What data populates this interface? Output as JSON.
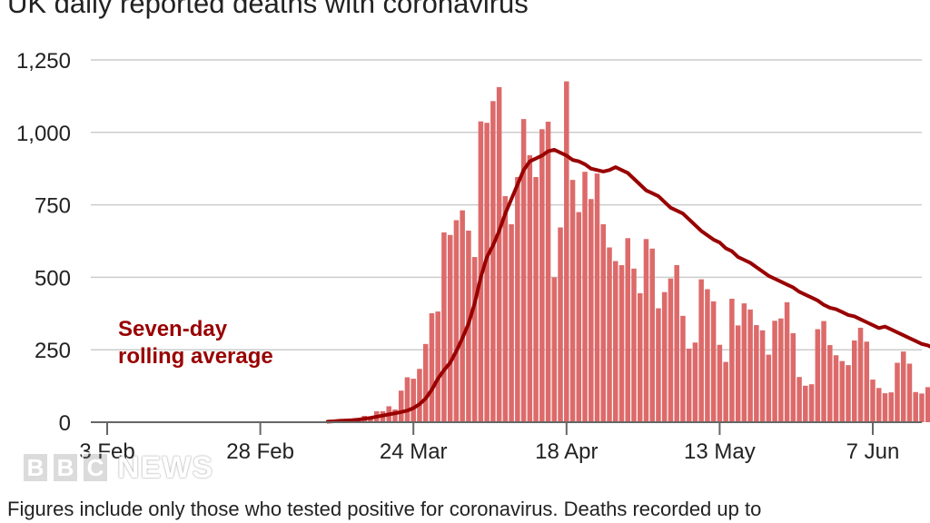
{
  "title": "UK daily reported deaths with coronavirus",
  "footnote": "Figures include only those who tested positive for coronavirus. Deaths recorded up to",
  "logo": {
    "letters": [
      "B",
      "B",
      "C"
    ],
    "word": "NEWS"
  },
  "colors": {
    "bar": "#dd6a6a",
    "line": "#990000",
    "grid": "#cccccc",
    "axis": "#666666",
    "text": "#222222"
  },
  "chart_data": {
    "type": "bar",
    "title": "UK daily reported deaths with coronavirus",
    "xlabel": "",
    "ylabel": "",
    "x_axis": {
      "start_date": "2020-02-03",
      "end_date": "2020-06-07",
      "ticks": [
        {
          "date": "2020-02-03",
          "label": "3 Feb"
        },
        {
          "date": "2020-02-28",
          "label": "28 Feb"
        },
        {
          "date": "2020-03-24",
          "label": "24 Mar"
        },
        {
          "date": "2020-04-18",
          "label": "18 Apr"
        },
        {
          "date": "2020-05-13",
          "label": "13 May"
        },
        {
          "date": "2020-06-07",
          "label": "7 Jun"
        }
      ]
    },
    "y_axis": {
      "ylim": [
        0,
        1250
      ],
      "ticks": [
        {
          "value": 0,
          "label": "0"
        },
        {
          "value": 250,
          "label": "250"
        },
        {
          "value": 500,
          "label": "500"
        },
        {
          "value": 750,
          "label": "750"
        },
        {
          "value": 1000,
          "label": "1,000"
        },
        {
          "value": 1250,
          "label": "1,250"
        }
      ]
    },
    "grid": true,
    "series": [
      {
        "type": "bar",
        "start_date": "2020-03-10",
        "values": [
          2,
          1,
          2,
          8,
          1,
          11,
          22,
          15,
          38,
          38,
          55,
          44,
          109,
          155,
          150,
          184,
          270,
          376,
          382,
          655,
          646,
          697,
          731,
          661,
          570,
          1038,
          1033,
          1108,
          1156,
          780,
          683,
          846,
          1046,
          921,
          846,
          1011,
          1037,
          500,
          672,
          1176,
          836,
          725,
          864,
          770,
          858,
          683,
          603,
          556,
          542,
          635,
          530,
          445,
          632,
          599,
          393,
          449,
          496,
          542,
          367,
          254,
          275,
          493,
          459,
          417,
          267,
          208,
          426,
          334,
          410,
          389,
          335,
          317,
          233,
          350,
          358,
          414,
          307,
          156,
          126,
          131,
          321,
          349,
          266,
          231,
          211,
          197,
          282,
          326,
          278,
          147,
          118,
          100,
          103,
          205,
          244,
          202,
          104,
          99,
          121,
          97,
          77
        ],
        "description": "Daily reported deaths with coronavirus"
      },
      {
        "type": "line",
        "name": "Seven-day rolling average",
        "start_date": "2020-03-10",
        "values": [
          2,
          3,
          5,
          6,
          7,
          9,
          12,
          15,
          19,
          23,
          27,
          31,
          35,
          40,
          49,
          62,
          82,
          112,
          150,
          180,
          205,
          245,
          290,
          340,
          410,
          500,
          570,
          610,
          660,
          720,
          770,
          820,
          870,
          900,
          910,
          920,
          935,
          940,
          930,
          920,
          905,
          900,
          890,
          875,
          870,
          865,
          870,
          880,
          870,
          860,
          840,
          820,
          800,
          790,
          780,
          760,
          740,
          730,
          720,
          700,
          680,
          660,
          645,
          630,
          620,
          600,
          590,
          570,
          560,
          550,
          535,
          520,
          505,
          495,
          485,
          475,
          465,
          450,
          440,
          430,
          420,
          405,
          395,
          390,
          380,
          370,
          365,
          355,
          345,
          335,
          325,
          330,
          320,
          310,
          300,
          290,
          280,
          270,
          265,
          255,
          240
        ],
        "description": "Seven-day rolling average of daily deaths"
      }
    ],
    "annotations": [
      {
        "text_lines": [
          "Seven-day",
          "rolling average"
        ],
        "target_series": "Seven-day rolling average"
      }
    ]
  }
}
